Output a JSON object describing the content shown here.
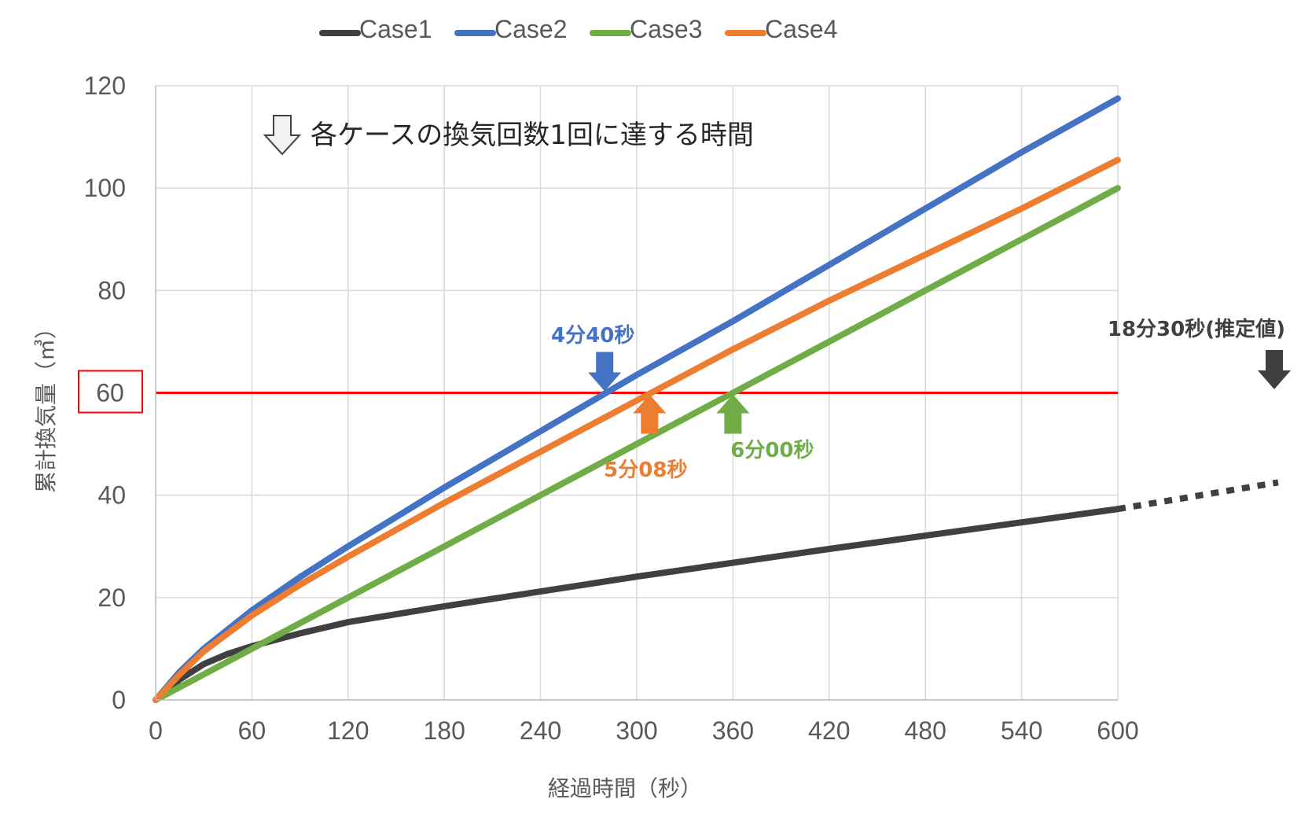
{
  "chart_data": {
    "type": "line",
    "xlabel": "経過時間（秒）",
    "ylabel": "累計換気量（㎥）",
    "xlim": [
      0,
      600
    ],
    "ylim": [
      0,
      120
    ],
    "x_ticks": [
      0,
      60,
      120,
      180,
      240,
      300,
      360,
      420,
      480,
      540,
      600
    ],
    "y_ticks": [
      0,
      20,
      40,
      60,
      80,
      100,
      120
    ],
    "grid": true,
    "legend_position": "top",
    "threshold": {
      "y": 60,
      "label": "60",
      "color": "#ff0000"
    },
    "note": "各ケースの換気回数1回に達する時間",
    "series": [
      {
        "name": "Case1",
        "color": "#404040",
        "x": [
          0,
          15,
          30,
          45,
          60,
          90,
          120,
          180,
          240,
          300,
          360,
          420,
          480,
          540,
          600
        ],
        "y": [
          0,
          4,
          7,
          9,
          10.5,
          13,
          15.2,
          18.3,
          21.2,
          24.1,
          26.8,
          29.5,
          32.1,
          34.7,
          37.3
        ],
        "extrapolated": {
          "x": [
            600,
            700
          ],
          "y": [
            37.3,
            42.5
          ]
        }
      },
      {
        "name": "Case2",
        "color": "#4472c4",
        "x": [
          0,
          15,
          30,
          60,
          90,
          120,
          180,
          240,
          300,
          360,
          420,
          480,
          540,
          600
        ],
        "y": [
          0,
          5.5,
          10,
          17.5,
          24,
          30,
          41.5,
          52.5,
          63.5,
          74,
          85,
          96,
          107,
          117.5
        ]
      },
      {
        "name": "Case3",
        "color": "#70ad47",
        "x": [
          0,
          60,
          120,
          180,
          240,
          300,
          360,
          420,
          480,
          540,
          600
        ],
        "y": [
          0,
          10,
          20,
          30,
          40,
          50,
          60,
          70,
          80,
          90,
          100
        ]
      },
      {
        "name": "Case4",
        "color": "#ed7d31",
        "x": [
          0,
          15,
          30,
          60,
          90,
          120,
          180,
          240,
          300,
          360,
          420,
          480,
          540,
          600
        ],
        "y": [
          0,
          5,
          9.5,
          16.5,
          22.5,
          28,
          38.5,
          48.5,
          58.5,
          68.5,
          78,
          87,
          96,
          105.5
        ]
      }
    ],
    "annotations": [
      {
        "text": "4分40秒",
        "x": 280,
        "y": 60,
        "color": "#4472c4",
        "arrow": "down"
      },
      {
        "text": "5分08秒",
        "x": 308,
        "y": 60,
        "color": "#ed7d31",
        "arrow": "up"
      },
      {
        "text": "6分00秒",
        "x": 360,
        "y": 60,
        "color": "#70ad47",
        "arrow": "up"
      },
      {
        "text": "18分30秒(推定値)",
        "x": 1110,
        "y": 60,
        "color": "#404040",
        "arrow": "down"
      }
    ]
  }
}
